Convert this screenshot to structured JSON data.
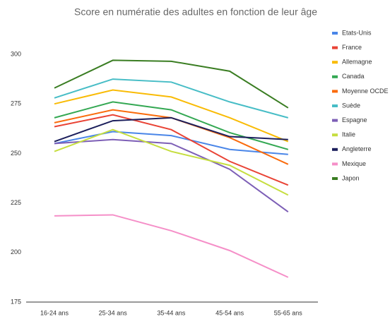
{
  "chart_data": {
    "type": "line",
    "title": "Score en numératie des adultes en fonction de leur âge",
    "categories": [
      "16-24  ans",
      "25-34 ans",
      "35-44 ans",
      "45-54 ans",
      "55-65 ans"
    ],
    "series": [
      {
        "name": "Etats-Unis",
        "color": "#4a86e8",
        "values": [
          255,
          261,
          259,
          252,
          249.5
        ]
      },
      {
        "name": "France",
        "color": "#e94335",
        "values": [
          263.5,
          269.5,
          262,
          246,
          234
        ]
      },
      {
        "name": "Allemagne",
        "color": "#f9bb05",
        "values": [
          275,
          282,
          278.5,
          268,
          256
        ]
      },
      {
        "name": "Canada",
        "color": "#34a853",
        "values": [
          268,
          276,
          272,
          260.5,
          252
        ]
      },
      {
        "name": "Moyenne OCDE",
        "color": "#fa6b0c",
        "values": [
          265.5,
          272,
          268,
          258,
          244.5
        ]
      },
      {
        "name": "Suède",
        "color": "#47bdc6",
        "values": [
          278,
          287.5,
          286,
          276,
          268
        ]
      },
      {
        "name": "Espagne",
        "color": "#7d5fb6",
        "values": [
          255,
          257,
          255,
          242,
          220.5
        ]
      },
      {
        "name": "Italie",
        "color": "#c6de3f",
        "values": [
          251,
          262,
          251,
          244,
          229
        ]
      },
      {
        "name": "Angleterre",
        "color": "#1c1f5c",
        "values": [
          256,
          266.5,
          268,
          258.5,
          257
        ]
      },
      {
        "name": "Mexique",
        "color": "#f58fc8",
        "values": [
          218.5,
          219,
          211,
          201,
          187.5
        ]
      },
      {
        "name": "Japon",
        "color": "#3a7d22",
        "values": [
          283,
          297,
          296.5,
          291.5,
          273
        ]
      }
    ],
    "ylim": [
      175,
      310
    ],
    "yticks": [
      175,
      200,
      225,
      250,
      275,
      300
    ],
    "legend": "right"
  }
}
